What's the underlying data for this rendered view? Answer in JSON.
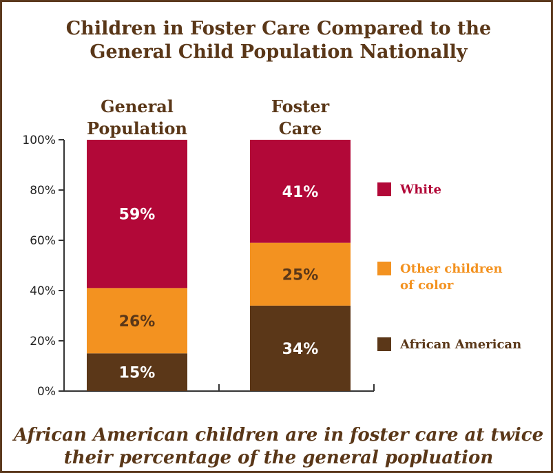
{
  "title_line1": "Children in Foster Care Compared to the",
  "title_line2": "General Child Population Nationally",
  "footer_line1": "African American children are in foster care at twice",
  "footer_line2": "their percentage of the general popluation",
  "colors": {
    "White": "#b20838",
    "Other children of color": "#f39220",
    "African American": "#5b3718",
    "text_dark": "#5a3718",
    "axis": "#333333"
  },
  "chart_data": {
    "type": "bar",
    "stacked": true,
    "categories": [
      {
        "line1": "General",
        "line2": "Population"
      },
      {
        "line1": "Foster",
        "line2": "Care"
      }
    ],
    "series": [
      {
        "name": "African American",
        "values": [
          15,
          34
        ],
        "labels": [
          "15%",
          "34%"
        ]
      },
      {
        "name": "Other children of color",
        "values": [
          26,
          25
        ],
        "labels": [
          "26%",
          "25%"
        ],
        "legend_lines": [
          "Other children",
          "of color"
        ]
      },
      {
        "name": "White",
        "values": [
          59,
          41
        ],
        "labels": [
          "59%",
          "41%"
        ]
      }
    ],
    "yticks": [
      "0%",
      "20%",
      "40%",
      "60%",
      "80%",
      "100%"
    ],
    "ylim": [
      0,
      100
    ],
    "legend_position": "right"
  }
}
